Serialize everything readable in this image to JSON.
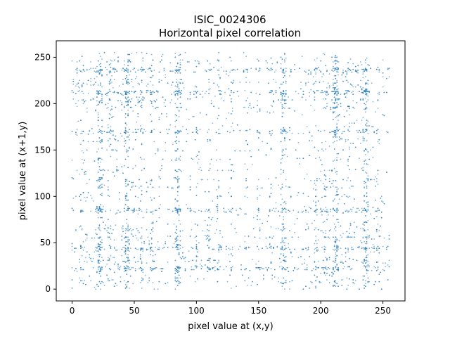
{
  "chart_data": {
    "type": "scatter",
    "title_line1": "ISIC_0024306",
    "title_line2": "Horizontal pixel correlation",
    "xlabel": "pixel value at (x,y)",
    "ylabel": "pixel value at (x+1,y)",
    "xlim": [
      -12.75,
      267.75
    ],
    "ylim": [
      -12.75,
      267.75
    ],
    "x_ticks": [
      0,
      50,
      100,
      150,
      200,
      250
    ],
    "y_ticks": [
      0,
      50,
      100,
      150,
      200,
      250
    ],
    "x_tick_labels": [
      "0",
      "50",
      "100",
      "150",
      "200",
      "250"
    ],
    "y_tick_labels": [
      "0",
      "50",
      "100",
      "150",
      "200",
      "250"
    ],
    "grid": false,
    "marker_color": "#1f77b4",
    "value_range": [
      0,
      255
    ],
    "dense_bands": [
      22,
      44,
      85,
      170,
      212,
      236
    ],
    "secondary_bands": [
      8,
      30,
      56,
      64,
      100,
      110,
      118,
      128,
      140,
      150,
      160,
      196,
      204,
      222,
      246
    ]
  }
}
